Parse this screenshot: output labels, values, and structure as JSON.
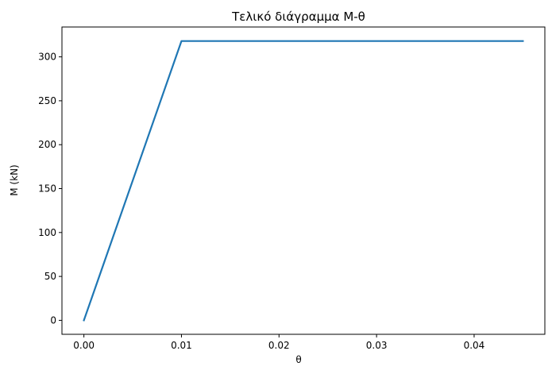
{
  "chart_data": {
    "type": "line",
    "title": "Τελικό διάγραμμα M-θ",
    "xlabel": "θ",
    "ylabel": "M (kN)",
    "xlim": [
      -0.00225,
      0.04725
    ],
    "ylim": [
      -15.9,
      334.0
    ],
    "xticks": [
      0.0,
      0.01,
      0.02,
      0.03,
      0.04
    ],
    "xtick_labels": [
      "0.00",
      "0.01",
      "0.02",
      "0.03",
      "0.04"
    ],
    "yticks": [
      0,
      50,
      100,
      150,
      200,
      250,
      300
    ],
    "ytick_labels": [
      "0",
      "50",
      "100",
      "150",
      "200",
      "250",
      "300"
    ],
    "grid": false,
    "series": [
      {
        "color": "#1f77b4",
        "x": [
          0.0,
          0.01,
          0.045
        ],
        "y": [
          0,
          318,
          318
        ]
      }
    ]
  }
}
